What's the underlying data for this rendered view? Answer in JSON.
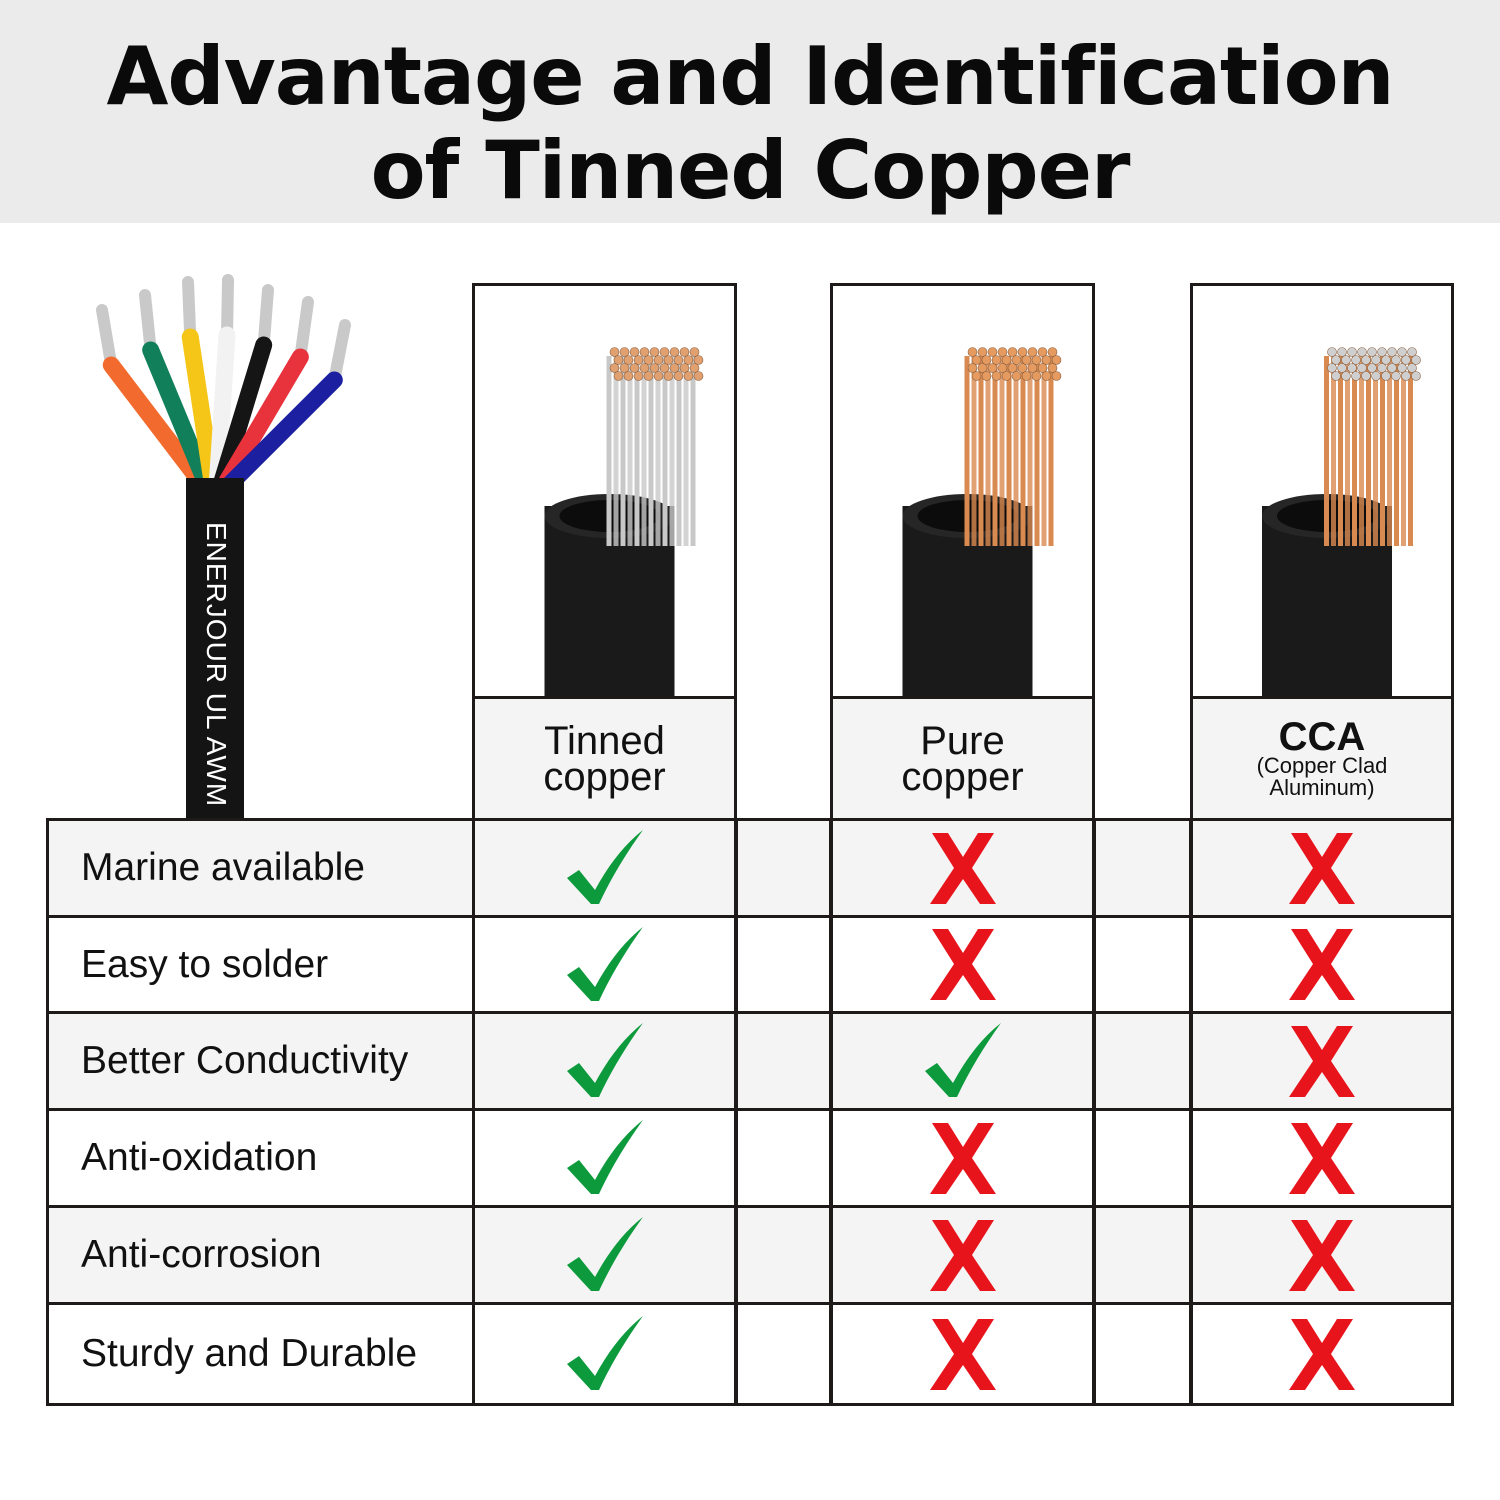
{
  "title": {
    "line1": "Advantage and Identification",
    "line2": "of Tinned Copper"
  },
  "cable_image": {
    "brand_text": "ENERJOUR",
    "cert_mark": "UL",
    "type_text": "AWM",
    "wire_colors": [
      "#f26a2d",
      "#11805a",
      "#f5c518",
      "#f2f2f2",
      "#151515",
      "#e8323c",
      "#1b1fa0"
    ]
  },
  "columns": [
    {
      "name": "Tinned copper",
      "line1": "Tinned",
      "line2": "copper",
      "strand_color": "#c8c8c8",
      "tip_color": "#e0a070"
    },
    {
      "name": "Pure copper",
      "line1": "Pure",
      "line2": "copper",
      "strand_color": "#d98a50",
      "tip_color": "#e59a60"
    },
    {
      "name": "CCA",
      "line1": "CCA",
      "line2": "(Copper Clad",
      "line3": "Aluminum)",
      "strand_color": "#d98a50",
      "tip_color": "#cfcfcf"
    }
  ],
  "rows": [
    {
      "label": "Marine available",
      "values": [
        true,
        false,
        false
      ]
    },
    {
      "label": "Easy to solder",
      "values": [
        true,
        false,
        false
      ]
    },
    {
      "label": "Better Conductivity",
      "values": [
        true,
        true,
        false
      ]
    },
    {
      "label": "Anti-oxidation",
      "values": [
        true,
        false,
        false
      ]
    },
    {
      "label": "Anti-corrosion",
      "values": [
        true,
        false,
        false
      ]
    },
    {
      "label": "Sturdy and Durable",
      "values": [
        true,
        false,
        false
      ]
    }
  ],
  "colors": {
    "check": "#0c9a3c",
    "cross": "#e8141c",
    "border": "#1e1a1a",
    "header_bg": "#ebebeb"
  }
}
